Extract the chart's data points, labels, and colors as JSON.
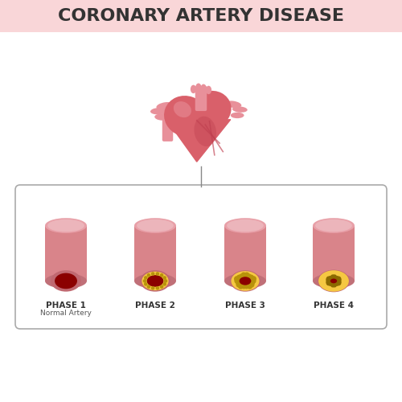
{
  "title": "CORONARY ARTERY DISEASE",
  "title_fontsize": 16,
  "title_color": "#333333",
  "background_color": "#ffffff",
  "header_bg_color": "#f9d6d8",
  "phases": [
    "PHASE 1",
    "PHASE 2",
    "PHASE 3",
    "PHASE 4"
  ],
  "phase_subtitles": [
    "Normal Artery",
    "",
    "",
    ""
  ],
  "artery_outer_color": "#d9848a",
  "artery_top_color": "#e8a0a8",
  "artery_bot_color": "#c07078",
  "blood_color": "#8b0000",
  "plaque_color": "#f5c842",
  "plaque_dot_color": "#b8920a",
  "wall_color": "#c06870",
  "box_border_color": "#aaaaaa",
  "heart_main_color": "#d9606a",
  "heart_light_color": "#e8909a",
  "heart_dark_color": "#b03040",
  "vessel_color": "#e8909a",
  "vein_color": "#c04050"
}
